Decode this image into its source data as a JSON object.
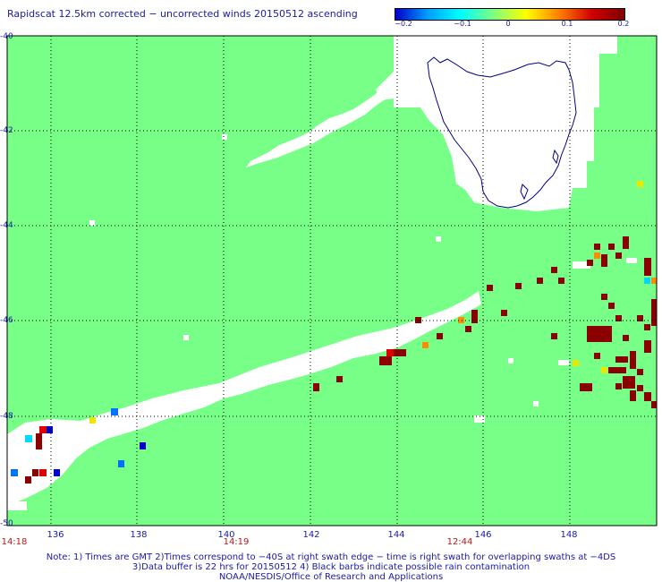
{
  "title": "Rapidscat 12.5km corrected − uncorrected winds 20150512 ascending",
  "colorbar": {
    "labels": [
      "−0.2",
      "−0.1",
      "0",
      "0.1",
      "0.2"
    ],
    "stops": [
      "#0000c8",
      "#00a0ff",
      "#00ffff",
      "#80ff80",
      "#ffff00",
      "#ff8000",
      "#d00000",
      "#800000"
    ]
  },
  "axes": {
    "lat_labels": [
      "-40",
      "-42",
      "-44",
      "-46",
      "-48",
      "-50"
    ],
    "lon_labels": [
      "136",
      "138",
      "140",
      "142",
      "144",
      "146",
      "148"
    ]
  },
  "times": [
    "14:18",
    "14:19",
    "12:44"
  ],
  "notes": [
    "Note: 1) Times are GMT 2)Times correspond to −40S at right swath edge − time is right swath for overlapping swaths at −4DS",
    "3)Data buffer is 22 hrs for 20150512 4) Black barbs indicate possible rain contamination",
    "NOAA/NESDIS/Office of Research and Applications"
  ],
  "colors": {
    "ocean": "#77ff88",
    "nodata": "#ffffff",
    "land_outline": "#000080",
    "grid": "#000000",
    "dark_red": "#8b0000",
    "red": "#dd0000",
    "orange": "#ff8c00",
    "yellow": "#e8e800",
    "cyan": "#00d8ff",
    "blue": "#0070ff",
    "dark_blue": "#0000cc"
  },
  "map": {
    "lon_range": [
      135,
      150
    ],
    "lat_range": [
      -50,
      -40
    ]
  }
}
